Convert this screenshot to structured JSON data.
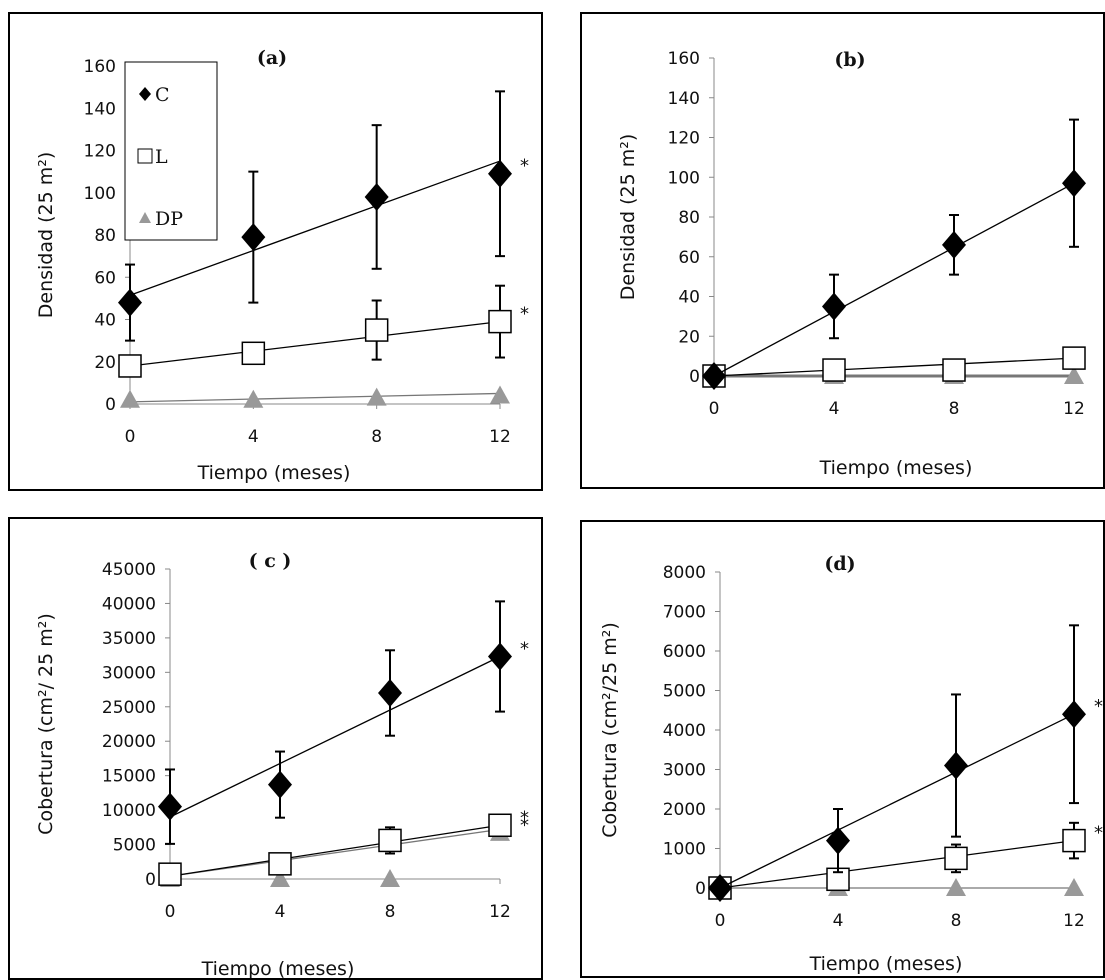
{
  "chart_data": [
    {
      "id": "a",
      "type": "scatter",
      "title": "(a)",
      "xlabel": "Tiempo (meses)",
      "ylabel": "Densidad  (25 m²)",
      "x": [
        0,
        4,
        8,
        12
      ],
      "ylim": [
        0,
        160
      ],
      "yticks": [
        0,
        20,
        40,
        60,
        80,
        100,
        120,
        140,
        160
      ],
      "xticks": [
        0,
        4,
        8,
        12
      ],
      "grid": false,
      "legend": {
        "placement": "top-left",
        "entries": [
          {
            "label": "C",
            "marker": "diamond"
          },
          {
            "label": "L",
            "marker": "square-open"
          },
          {
            "label": "DP",
            "marker": "triangle"
          }
        ]
      },
      "series": [
        {
          "name": "C",
          "marker": "diamond",
          "values": [
            48,
            79,
            98,
            109
          ],
          "err": [
            18,
            31,
            34,
            39
          ],
          "trend": [
            51.5,
            115
          ],
          "star": "*"
        },
        {
          "name": "L",
          "marker": "square-open",
          "values": [
            18,
            24,
            35,
            39
          ],
          "err": [
            0,
            0,
            14,
            17
          ],
          "trend": [
            18,
            39
          ],
          "star": "*"
        },
        {
          "name": "DP",
          "marker": "triangle",
          "values": [
            2,
            2,
            3,
            4
          ],
          "err": [
            0,
            0,
            0,
            0
          ],
          "trend": [
            1,
            5
          ],
          "star": ""
        }
      ]
    },
    {
      "id": "b",
      "type": "scatter",
      "title": "(b)",
      "xlabel": "Tiempo (meses)",
      "ylabel": "Densidad (25 m²)",
      "x": [
        0,
        4,
        8,
        12
      ],
      "ylim": [
        0,
        160
      ],
      "yticks": [
        0,
        20,
        40,
        60,
        80,
        100,
        120,
        140,
        160
      ],
      "xticks": [
        0,
        4,
        8,
        12
      ],
      "grid": false,
      "series": [
        {
          "name": "C",
          "marker": "diamond",
          "values": [
            0,
            35,
            66,
            97
          ],
          "err": [
            0,
            16,
            15,
            32
          ],
          "trend": [
            0,
            97
          ],
          "star": ""
        },
        {
          "name": "L",
          "marker": "square-open",
          "values": [
            0,
            3,
            3,
            9
          ],
          "err": [
            0,
            0,
            0,
            0
          ],
          "trend": [
            0,
            9
          ],
          "star": ""
        },
        {
          "name": "DP",
          "marker": "triangle",
          "values": [
            0,
            0,
            0,
            0
          ],
          "err": [
            0,
            0,
            0,
            0
          ],
          "trend": [
            0,
            0
          ],
          "star": ""
        }
      ]
    },
    {
      "id": "c",
      "type": "scatter",
      "title": "( c )",
      "xlabel": "Tiempo (meses)",
      "ylabel": "Cobertura (cm²/ 25  m²)",
      "x": [
        0,
        4,
        8,
        12
      ],
      "ylim": [
        0,
        45000
      ],
      "yticks": [
        0,
        5000,
        10000,
        15000,
        20000,
        25000,
        30000,
        35000,
        40000,
        45000
      ],
      "xticks": [
        0,
        4,
        8,
        12
      ],
      "grid": false,
      "series": [
        {
          "name": "C",
          "marker": "diamond",
          "values": [
            10500,
            13700,
            27000,
            32300
          ],
          "err": [
            5400,
            4800,
            6200,
            8000
          ],
          "trend": [
            9000,
            32300
          ],
          "star": "*"
        },
        {
          "name": "L",
          "marker": "square-open",
          "values": [
            700,
            2200,
            5600,
            7800
          ],
          "err": [
            0,
            0,
            1900,
            1200
          ],
          "trend": [
            400,
            7800
          ],
          "star": "*"
        },
        {
          "name": "DP",
          "marker": "triangle",
          "values": [
            0,
            0,
            0,
            6700
          ],
          "err": [
            0,
            0,
            0,
            0
          ],
          "trend": [
            400,
            7200
          ],
          "star": "*"
        }
      ]
    },
    {
      "id": "d",
      "type": "scatter",
      "title": "(d)",
      "xlabel": "Tiempo (meses)",
      "ylabel": "Cobertura (cm²/25 m²)",
      "x": [
        0,
        4,
        8,
        12
      ],
      "ylim": [
        0,
        8000
      ],
      "yticks": [
        0,
        1000,
        2000,
        3000,
        4000,
        5000,
        6000,
        7000,
        8000
      ],
      "xticks": [
        0,
        4,
        8,
        12
      ],
      "grid": false,
      "series": [
        {
          "name": "C",
          "marker": "diamond",
          "values": [
            0,
            1200,
            3100,
            4400
          ],
          "err": [
            0,
            800,
            1800,
            2250
          ],
          "trend": [
            0,
            4400
          ],
          "star": "*"
        },
        {
          "name": "L",
          "marker": "square-open",
          "values": [
            0,
            220,
            750,
            1200
          ],
          "err": [
            0,
            0,
            350,
            450
          ],
          "trend": [
            0,
            1200
          ],
          "star": "*"
        },
        {
          "name": "DP",
          "marker": "triangle",
          "values": [
            0,
            0,
            0,
            0
          ],
          "err": [
            0,
            0,
            0,
            0
          ],
          "trend": [
            0,
            0
          ],
          "star": ""
        }
      ]
    }
  ]
}
